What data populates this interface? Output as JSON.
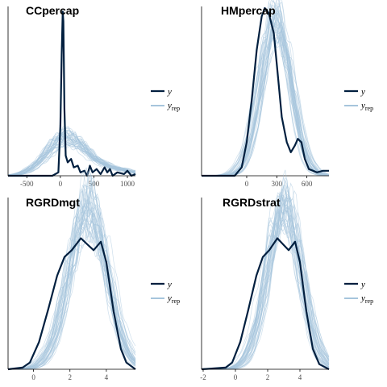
{
  "colors": {
    "y": "#011f3f",
    "yrep": "#a6c5dc",
    "axis": "#000000"
  },
  "legend": {
    "y_label": "y",
    "yrep_label": "y",
    "yrep_sub": "rep"
  },
  "chart_data": [
    {
      "type": "line",
      "title": "CCpercap",
      "xlim": [
        -780,
        1120
      ],
      "ticks": [
        {
          "v": -500,
          "label": "-500"
        },
        {
          "v": 0,
          "label": "0"
        },
        {
          "v": 500,
          "label": "500"
        },
        {
          "v": 1000,
          "label": "1000"
        }
      ],
      "y_series": [
        [
          -780,
          0
        ],
        [
          -120,
          0
        ],
        [
          -30,
          0.02
        ],
        [
          0,
          0.3
        ],
        [
          20,
          0.72
        ],
        [
          35,
          0.98
        ],
        [
          45,
          0.92
        ],
        [
          60,
          0.4
        ],
        [
          80,
          0.12
        ],
        [
          110,
          0.08
        ],
        [
          160,
          0.1
        ],
        [
          200,
          0.05
        ],
        [
          260,
          0.06
        ],
        [
          300,
          0.02
        ],
        [
          360,
          0.03
        ],
        [
          400,
          0.0
        ],
        [
          440,
          0.06
        ],
        [
          480,
          0.02
        ],
        [
          540,
          0.04
        ],
        [
          600,
          0.01
        ],
        [
          660,
          0.05
        ],
        [
          700,
          0.02
        ],
        [
          740,
          0.04
        ],
        [
          780,
          0.0
        ],
        [
          850,
          0.02
        ],
        [
          950,
          0.01
        ],
        [
          1000,
          0.03
        ],
        [
          1060,
          0.0
        ],
        [
          1120,
          0.01
        ]
      ],
      "yrep": {
        "count": 40,
        "shape": "normal",
        "center": 80,
        "center_jitter": 50,
        "spread": 290,
        "spread_jitter": 30,
        "peak": 0.22,
        "peak_jitter": 0.05,
        "noise": 0.12,
        "clip_low": -780,
        "tail_right": 0.18
      }
    },
    {
      "type": "line",
      "title": "HMpercap",
      "xlim": [
        -450,
        820
      ],
      "ticks": [
        {
          "v": 0,
          "label": "0"
        },
        {
          "v": 300,
          "label": "300"
        },
        {
          "v": 600,
          "label": "600"
        }
      ],
      "y_series": [
        [
          -450,
          0
        ],
        [
          -120,
          0.0
        ],
        [
          -50,
          0.05
        ],
        [
          0,
          0.2
        ],
        [
          50,
          0.45
        ],
        [
          100,
          0.75
        ],
        [
          150,
          0.95
        ],
        [
          180,
          1.0
        ],
        [
          220,
          0.97
        ],
        [
          270,
          0.85
        ],
        [
          310,
          0.6
        ],
        [
          350,
          0.35
        ],
        [
          400,
          0.2
        ],
        [
          440,
          0.14
        ],
        [
          480,
          0.18
        ],
        [
          510,
          0.22
        ],
        [
          545,
          0.2
        ],
        [
          580,
          0.1
        ],
        [
          620,
          0.04
        ],
        [
          700,
          0.02
        ],
        [
          760,
          0.03
        ],
        [
          820,
          0.03
        ]
      ],
      "yrep": {
        "count": 40,
        "shape": "normal",
        "center": 290,
        "center_jitter": 35,
        "spread": 150,
        "spread_jitter": 20,
        "peak": 0.92,
        "peak_jitter": 0.1,
        "noise": 0.1,
        "clip_low": -450,
        "tail_right": 0
      }
    },
    {
      "type": "line",
      "title": "RGRDmgt",
      "xlim": [
        -1.4,
        5.6
      ],
      "ticks": [
        {
          "v": 0,
          "label": "0"
        },
        {
          "v": 2,
          "label": "2"
        },
        {
          "v": 4,
          "label": "4"
        }
      ],
      "y_series": [
        [
          -1.4,
          0
        ],
        [
          -0.6,
          0.01
        ],
        [
          -0.2,
          0.04
        ],
        [
          0.3,
          0.16
        ],
        [
          0.8,
          0.35
        ],
        [
          1.3,
          0.55
        ],
        [
          1.7,
          0.66
        ],
        [
          2.1,
          0.7
        ],
        [
          2.6,
          0.77
        ],
        [
          3.0,
          0.73
        ],
        [
          3.3,
          0.7
        ],
        [
          3.7,
          0.75
        ],
        [
          4.0,
          0.63
        ],
        [
          4.4,
          0.34
        ],
        [
          4.8,
          0.12
        ],
        [
          5.1,
          0.04
        ],
        [
          5.6,
          0.0
        ]
      ],
      "yrep": {
        "count": 40,
        "shape": "normal",
        "center": 3.0,
        "center_jitter": 0.25,
        "spread": 1.05,
        "spread_jitter": 0.12,
        "peak": 0.95,
        "peak_jitter": 0.12,
        "noise": 0.12,
        "clip_low": -1.4,
        "tail_right": 0
      }
    },
    {
      "type": "line",
      "title": "RGRDstrat",
      "xlim": [
        -2.1,
        5.8
      ],
      "ticks": [
        {
          "v": -2,
          "label": "-2"
        },
        {
          "v": 0,
          "label": "0"
        },
        {
          "v": 2,
          "label": "2"
        },
        {
          "v": 4,
          "label": "4"
        }
      ],
      "y_series": [
        [
          -2.1,
          0
        ],
        [
          -0.6,
          0.01
        ],
        [
          -0.2,
          0.04
        ],
        [
          0.3,
          0.16
        ],
        [
          0.8,
          0.35
        ],
        [
          1.3,
          0.55
        ],
        [
          1.7,
          0.66
        ],
        [
          2.1,
          0.7
        ],
        [
          2.6,
          0.77
        ],
        [
          3.0,
          0.73
        ],
        [
          3.3,
          0.7
        ],
        [
          3.7,
          0.75
        ],
        [
          4.0,
          0.63
        ],
        [
          4.4,
          0.34
        ],
        [
          4.8,
          0.12
        ],
        [
          5.2,
          0.03
        ],
        [
          5.8,
          0.0
        ]
      ],
      "yrep": {
        "count": 40,
        "shape": "normal",
        "center": 3.0,
        "center_jitter": 0.25,
        "spread": 1.05,
        "spread_jitter": 0.12,
        "peak": 0.95,
        "peak_jitter": 0.12,
        "noise": 0.12,
        "clip_low": -2.1,
        "tail_right": 0
      }
    }
  ]
}
